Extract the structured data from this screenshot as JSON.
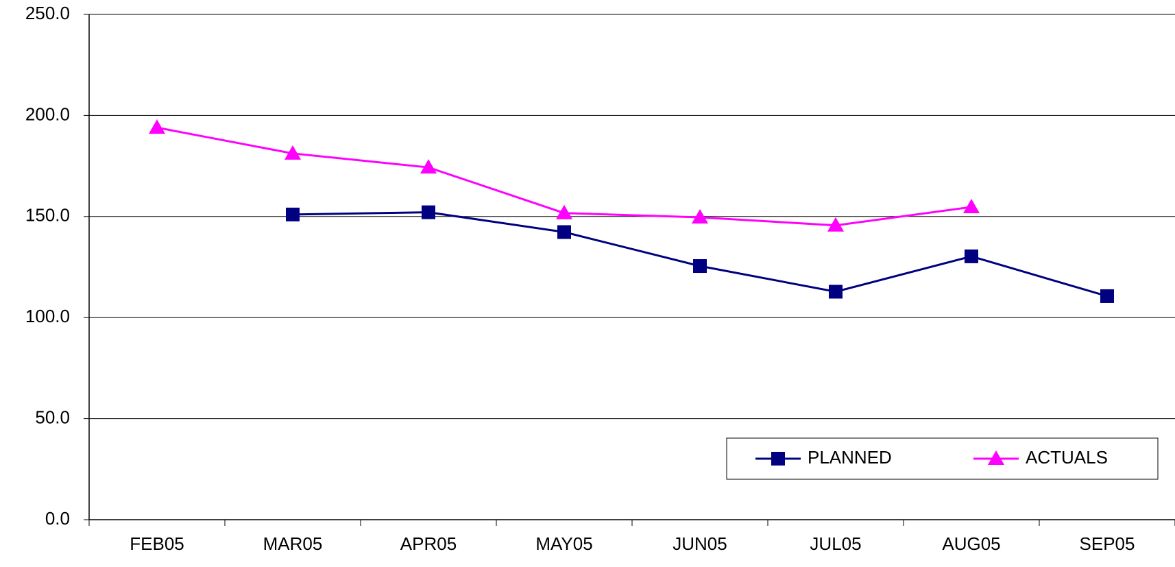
{
  "chart_data": {
    "type": "line",
    "categories": [
      "FEB05",
      "MAR05",
      "APR05",
      "MAY05",
      "JUN05",
      "JUL05",
      "AUG05",
      "SEP05"
    ],
    "series": [
      {
        "name": "PLANNED",
        "color": "#000080",
        "marker": "square",
        "values": [
          null,
          151.0,
          152.1,
          142.3,
          125.5,
          112.8,
          130.3,
          110.6
        ]
      },
      {
        "name": "ACTUALS",
        "color": "#ff00ff",
        "marker": "triangle",
        "values": [
          194.0,
          181.2,
          174.3,
          151.7,
          149.6,
          145.6,
          154.7,
          null
        ]
      }
    ],
    "ylim": [
      0,
      250
    ],
    "yticks": [
      {
        "value": 0,
        "label": "0.0"
      },
      {
        "value": 50,
        "label": "50.0"
      },
      {
        "value": 100,
        "label": "100.0"
      },
      {
        "value": 150,
        "label": "150.0"
      },
      {
        "value": 200,
        "label": "200.0"
      },
      {
        "value": 250,
        "label": "250.0"
      }
    ],
    "grid": true,
    "legend": "lower right"
  }
}
